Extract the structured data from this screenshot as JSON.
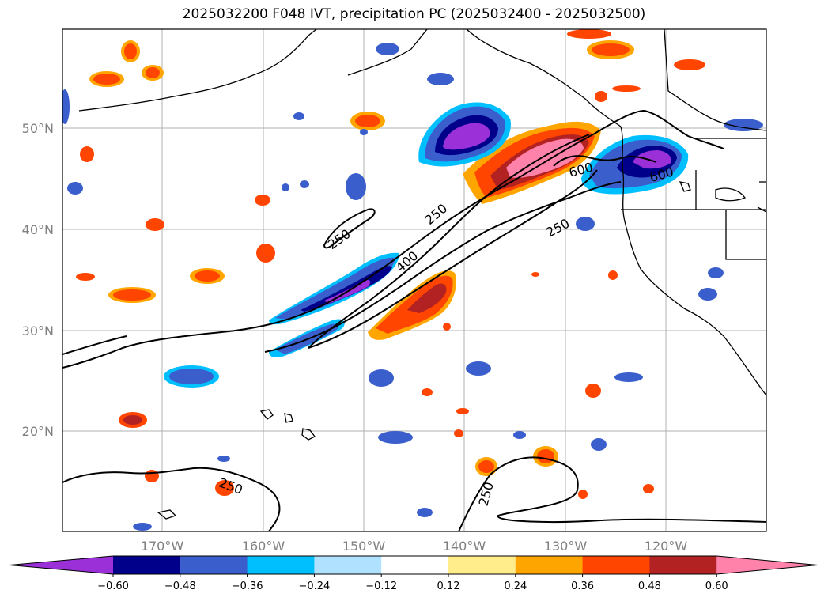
{
  "title": "2025032200 F048 IVT, precipitation PC (2025032400 - 2025032500)",
  "map": {
    "lat_labels": [
      "50°N",
      "40°N",
      "30°N",
      "20°N"
    ],
    "lon_labels": [
      "170°W",
      "160°W",
      "150°W",
      "140°W",
      "130°W",
      "120°W"
    ],
    "contour_labels": [
      "250",
      "250",
      "250",
      "250",
      "250",
      "400",
      "600",
      "600"
    ]
  },
  "colorbar": {
    "tick_labels": [
      "−0.60",
      "−0.48",
      "−0.36",
      "−0.24",
      "−0.12",
      "0.12",
      "0.24",
      "0.36",
      "0.48",
      "0.60"
    ],
    "colors": [
      "#9b30d9",
      "#00008b",
      "#3a5fcd",
      "#00bfff",
      "#b0e2ff",
      "#ffffff",
      "#ffec8b",
      "#ffa500",
      "#ff4500",
      "#b22222",
      "#ff82ab"
    ]
  }
}
